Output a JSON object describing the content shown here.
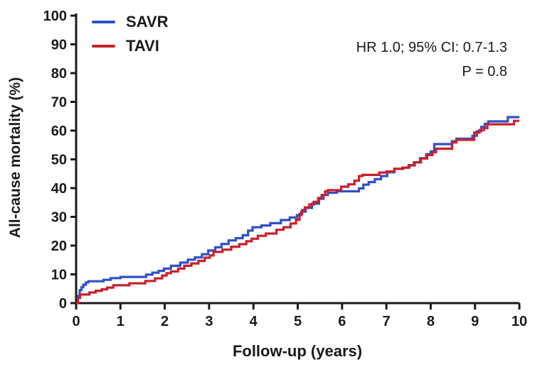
{
  "figure": {
    "annotation_line1": "HR 1.0; 95% CI: 0.7-1.3",
    "annotation_line2": "P = 0.8",
    "background_color": "#ffffff",
    "axis_color": "#1a1a1a"
  },
  "chart_data": {
    "type": "line",
    "subtype": "kaplan-meier-step",
    "title": "",
    "xlabel": "Follow-up (years)",
    "ylabel": "All-cause mortality (%)",
    "xlim": [
      0,
      10
    ],
    "ylim": [
      0,
      100
    ],
    "x_ticks": [
      0,
      1,
      2,
      3,
      4,
      5,
      6,
      7,
      8,
      9,
      10
    ],
    "y_ticks": [
      0,
      10,
      20,
      30,
      40,
      50,
      60,
      70,
      80,
      90,
      100
    ],
    "grid": false,
    "legend_position": "top-left-inside",
    "annotations": [
      "HR 1.0; 95% CI: 0.7-1.3",
      "P = 0.8"
    ],
    "series": [
      {
        "name": "SAVR",
        "color": "#3050c8",
        "step": true,
        "points": [
          [
            0,
            0
          ],
          [
            0.04,
            2.5
          ],
          [
            0.08,
            4.5
          ],
          [
            0.12,
            5.5
          ],
          [
            0.16,
            6.4
          ],
          [
            0.22,
            7.2
          ],
          [
            0.28,
            7.6
          ],
          [
            0.62,
            8.1
          ],
          [
            0.78,
            8.7
          ],
          [
            1.0,
            9.1
          ],
          [
            1.58,
            9.9
          ],
          [
            1.72,
            10.6
          ],
          [
            1.86,
            11.2
          ],
          [
            1.98,
            12.0
          ],
          [
            2.14,
            13.0
          ],
          [
            2.35,
            14.1
          ],
          [
            2.52,
            15.1
          ],
          [
            2.68,
            15.9
          ],
          [
            2.84,
            17.0
          ],
          [
            2.98,
            18.3
          ],
          [
            3.14,
            19.4
          ],
          [
            3.28,
            20.6
          ],
          [
            3.44,
            21.8
          ],
          [
            3.6,
            22.6
          ],
          [
            3.76,
            23.6
          ],
          [
            3.88,
            25.2
          ],
          [
            3.98,
            26.4
          ],
          [
            4.18,
            27.0
          ],
          [
            4.38,
            27.8
          ],
          [
            4.62,
            28.9
          ],
          [
            4.82,
            29.8
          ],
          [
            4.98,
            30.6
          ],
          [
            5.08,
            31.8
          ],
          [
            5.18,
            33.1
          ],
          [
            5.32,
            34.6
          ],
          [
            5.48,
            36.3
          ],
          [
            5.58,
            37.6
          ],
          [
            5.68,
            38.4
          ],
          [
            5.88,
            38.9
          ],
          [
            6.38,
            39.9
          ],
          [
            6.48,
            41.2
          ],
          [
            6.6,
            42.1
          ],
          [
            6.74,
            43.1
          ],
          [
            6.88,
            44.2
          ],
          [
            7.02,
            45.5
          ],
          [
            7.18,
            46.7
          ],
          [
            7.38,
            47.1
          ],
          [
            7.52,
            48.0
          ],
          [
            7.62,
            49.0
          ],
          [
            7.76,
            50.4
          ],
          [
            7.9,
            51.8
          ],
          [
            8.0,
            52.8
          ],
          [
            8.08,
            55.3
          ],
          [
            8.48,
            56.3
          ],
          [
            8.58,
            57.2
          ],
          [
            8.94,
            58.2
          ],
          [
            9.04,
            59.8
          ],
          [
            9.14,
            61.3
          ],
          [
            9.22,
            62.4
          ],
          [
            9.3,
            63.2
          ],
          [
            9.74,
            64.7
          ],
          [
            10,
            64.7
          ]
        ]
      },
      {
        "name": "TAVI",
        "color": "#c8202c",
        "step": true,
        "points": [
          [
            0,
            0
          ],
          [
            0.04,
            1.8
          ],
          [
            0.09,
            3.0
          ],
          [
            0.3,
            3.7
          ],
          [
            0.44,
            4.3
          ],
          [
            0.58,
            4.8
          ],
          [
            0.7,
            5.4
          ],
          [
            0.84,
            6.2
          ],
          [
            1.2,
            6.9
          ],
          [
            1.56,
            7.7
          ],
          [
            1.78,
            8.6
          ],
          [
            1.94,
            9.6
          ],
          [
            2.04,
            10.4
          ],
          [
            2.14,
            11.0
          ],
          [
            2.3,
            12.0
          ],
          [
            2.44,
            13.0
          ],
          [
            2.6,
            13.8
          ],
          [
            2.76,
            14.7
          ],
          [
            2.9,
            15.8
          ],
          [
            3.02,
            16.6
          ],
          [
            3.1,
            17.8
          ],
          [
            3.3,
            18.6
          ],
          [
            3.5,
            19.6
          ],
          [
            3.68,
            20.5
          ],
          [
            3.84,
            21.5
          ],
          [
            3.96,
            22.4
          ],
          [
            4.1,
            23.4
          ],
          [
            4.28,
            24.2
          ],
          [
            4.52,
            25.5
          ],
          [
            4.68,
            26.4
          ],
          [
            4.84,
            27.7
          ],
          [
            4.96,
            29.0
          ],
          [
            5.04,
            31.0
          ],
          [
            5.1,
            32.4
          ],
          [
            5.16,
            33.3
          ],
          [
            5.26,
            34.3
          ],
          [
            5.36,
            35.2
          ],
          [
            5.46,
            36.6
          ],
          [
            5.54,
            37.6
          ],
          [
            5.62,
            38.9
          ],
          [
            5.68,
            39.3
          ],
          [
            5.98,
            40.5
          ],
          [
            6.14,
            41.3
          ],
          [
            6.28,
            42.6
          ],
          [
            6.38,
            44.2
          ],
          [
            6.46,
            44.6
          ],
          [
            6.84,
            45.4
          ],
          [
            7.0,
            45.8
          ],
          [
            7.18,
            46.7
          ],
          [
            7.36,
            47.1
          ],
          [
            7.5,
            47.9
          ],
          [
            7.64,
            49.0
          ],
          [
            7.78,
            50.3
          ],
          [
            7.92,
            51.5
          ],
          [
            8.04,
            52.5
          ],
          [
            8.12,
            53.7
          ],
          [
            8.48,
            55.9
          ],
          [
            8.58,
            56.8
          ],
          [
            8.98,
            59.3
          ],
          [
            9.1,
            60.2
          ],
          [
            9.2,
            60.9
          ],
          [
            9.28,
            62.2
          ],
          [
            9.88,
            63.4
          ],
          [
            10,
            63.4
          ]
        ]
      }
    ]
  }
}
